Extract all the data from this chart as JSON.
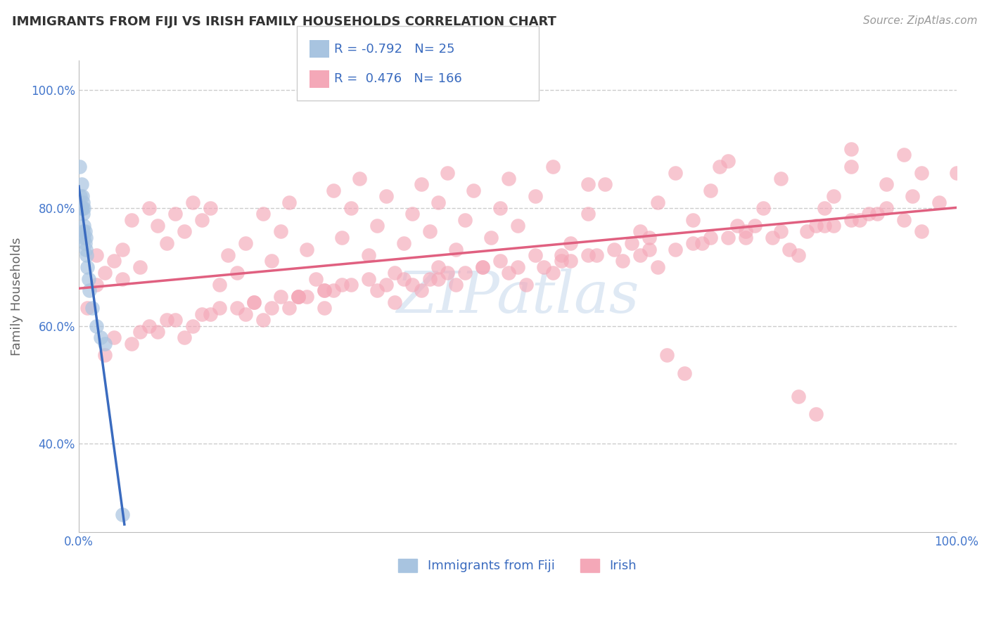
{
  "title": "IMMIGRANTS FROM FIJI VS IRISH FAMILY HOUSEHOLDS CORRELATION CHART",
  "source": "Source: ZipAtlas.com",
  "ylabel": "Family Households",
  "legend_fiji_r": "-0.792",
  "legend_fiji_n": "25",
  "legend_irish_r": "0.476",
  "legend_irish_n": "166",
  "legend_fiji_label": "Immigrants from Fiji",
  "legend_irish_label": "Irish",
  "watermark": "ZIPatlas",
  "fiji_color": "#a8c4e0",
  "fiji_line_color": "#3a6bbf",
  "irish_color": "#f4a8b8",
  "irish_line_color": "#e06080",
  "background_color": "#ffffff",
  "grid_color": "#cccccc",
  "title_color": "#333333",
  "axis_label_color": "#666666",
  "tick_color": "#4477cc",
  "fiji_points_x": [
    0.001,
    0.002,
    0.003,
    0.003,
    0.004,
    0.004,
    0.005,
    0.005,
    0.005,
    0.006,
    0.006,
    0.006,
    0.007,
    0.007,
    0.008,
    0.008,
    0.009,
    0.01,
    0.011,
    0.012,
    0.015,
    0.02,
    0.025,
    0.03,
    0.05
  ],
  "fiji_points_y": [
    0.87,
    0.82,
    0.84,
    0.8,
    0.82,
    0.8,
    0.81,
    0.79,
    0.76,
    0.8,
    0.77,
    0.75,
    0.76,
    0.74,
    0.75,
    0.73,
    0.72,
    0.7,
    0.68,
    0.66,
    0.63,
    0.6,
    0.58,
    0.57,
    0.28
  ],
  "irish_points_x": [
    0.01,
    0.02,
    0.02,
    0.03,
    0.04,
    0.05,
    0.05,
    0.06,
    0.07,
    0.08,
    0.09,
    0.1,
    0.11,
    0.12,
    0.13,
    0.14,
    0.15,
    0.16,
    0.17,
    0.18,
    0.19,
    0.2,
    0.21,
    0.22,
    0.23,
    0.24,
    0.25,
    0.26,
    0.27,
    0.28,
    0.29,
    0.3,
    0.31,
    0.32,
    0.33,
    0.34,
    0.35,
    0.36,
    0.37,
    0.38,
    0.39,
    0.4,
    0.41,
    0.42,
    0.43,
    0.44,
    0.45,
    0.46,
    0.47,
    0.48,
    0.49,
    0.5,
    0.52,
    0.54,
    0.56,
    0.58,
    0.6,
    0.62,
    0.64,
    0.66,
    0.68,
    0.7,
    0.72,
    0.74,
    0.76,
    0.78,
    0.8,
    0.82,
    0.84,
    0.86,
    0.88,
    0.9,
    0.92,
    0.94,
    0.96,
    0.98,
    1.0,
    0.08,
    0.12,
    0.18,
    0.25,
    0.33,
    0.41,
    0.55,
    0.65,
    0.75,
    0.85,
    0.95,
    0.15,
    0.28,
    0.42,
    0.58,
    0.72,
    0.88,
    0.2,
    0.35,
    0.5,
    0.65,
    0.8,
    0.1,
    0.25,
    0.4,
    0.55,
    0.7,
    0.85,
    0.3,
    0.48,
    0.63,
    0.77,
    0.92,
    0.07,
    0.22,
    0.38,
    0.53,
    0.68,
    0.83,
    0.14,
    0.29,
    0.44,
    0.59,
    0.74,
    0.89,
    0.04,
    0.19,
    0.34,
    0.49,
    0.64,
    0.79,
    0.94,
    0.11,
    0.26,
    0.41,
    0.56,
    0.71,
    0.86,
    0.16,
    0.31,
    0.46,
    0.61,
    0.76,
    0.91,
    0.23,
    0.37,
    0.52,
    0.67,
    0.82,
    0.09,
    0.24,
    0.39,
    0.54,
    0.69,
    0.84,
    0.06,
    0.21,
    0.36,
    0.51,
    0.66,
    0.81,
    0.96,
    0.13,
    0.28,
    0.43,
    0.58,
    0.73,
    0.88,
    0.03
  ],
  "irish_points_y": [
    0.63,
    0.67,
    0.72,
    0.69,
    0.71,
    0.68,
    0.73,
    0.78,
    0.7,
    0.8,
    0.77,
    0.74,
    0.79,
    0.76,
    0.81,
    0.78,
    0.8,
    0.67,
    0.72,
    0.69,
    0.74,
    0.64,
    0.79,
    0.71,
    0.76,
    0.81,
    0.65,
    0.73,
    0.68,
    0.66,
    0.83,
    0.75,
    0.8,
    0.85,
    0.72,
    0.77,
    0.82,
    0.69,
    0.74,
    0.79,
    0.84,
    0.76,
    0.81,
    0.86,
    0.73,
    0.78,
    0.83,
    0.7,
    0.75,
    0.8,
    0.85,
    0.77,
    0.82,
    0.87,
    0.74,
    0.79,
    0.84,
    0.71,
    0.76,
    0.81,
    0.86,
    0.78,
    0.83,
    0.88,
    0.75,
    0.8,
    0.85,
    0.72,
    0.77,
    0.82,
    0.87,
    0.79,
    0.84,
    0.89,
    0.76,
    0.81,
    0.86,
    0.6,
    0.58,
    0.63,
    0.65,
    0.68,
    0.7,
    0.72,
    0.75,
    0.77,
    0.8,
    0.82,
    0.62,
    0.66,
    0.69,
    0.72,
    0.75,
    0.78,
    0.64,
    0.67,
    0.7,
    0.73,
    0.76,
    0.61,
    0.65,
    0.68,
    0.71,
    0.74,
    0.77,
    0.67,
    0.71,
    0.74,
    0.77,
    0.8,
    0.59,
    0.63,
    0.67,
    0.7,
    0.73,
    0.76,
    0.62,
    0.66,
    0.69,
    0.72,
    0.75,
    0.78,
    0.58,
    0.62,
    0.66,
    0.69,
    0.72,
    0.75,
    0.78,
    0.61,
    0.65,
    0.68,
    0.71,
    0.74,
    0.77,
    0.63,
    0.67,
    0.7,
    0.73,
    0.76,
    0.79,
    0.65,
    0.68,
    0.72,
    0.55,
    0.48,
    0.59,
    0.63,
    0.66,
    0.69,
    0.52,
    0.45,
    0.57,
    0.61,
    0.64,
    0.67,
    0.7,
    0.73,
    0.86,
    0.6,
    0.63,
    0.67,
    0.84,
    0.87,
    0.9,
    0.55
  ],
  "xlim": [
    0.0,
    1.0
  ],
  "ylim": [
    0.25,
    1.05
  ],
  "yticks": [
    0.4,
    0.6,
    0.8,
    1.0
  ],
  "ytick_labels": [
    "40.0%",
    "60.0%",
    "80.0%",
    "100.0%"
  ],
  "xtick_labels": [
    "0.0%",
    "100.0%"
  ]
}
